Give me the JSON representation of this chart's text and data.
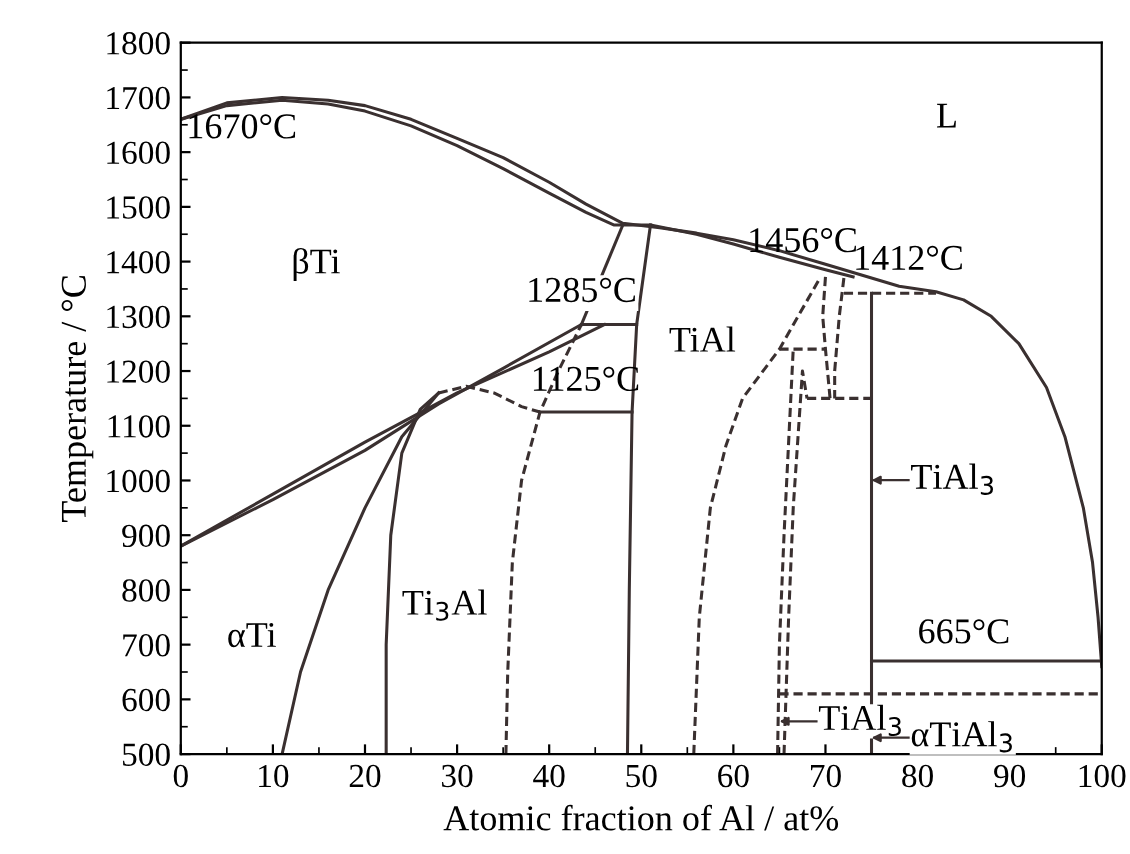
{
  "chart_data": {
    "type": "line",
    "xlabel": "Atomic fraction of Al / at%",
    "ylabel": "Temperature / °C",
    "xlim": [
      0,
      100
    ],
    "ylim": [
      500,
      1800
    ],
    "xticks": [
      0,
      10,
      20,
      30,
      40,
      50,
      60,
      70,
      80,
      90,
      100
    ],
    "yticks": [
      500,
      600,
      700,
      800,
      900,
      1000,
      1100,
      1200,
      1300,
      1400,
      1500,
      1600,
      1700,
      1800
    ],
    "grid": false,
    "legend": false,
    "marker": "none",
    "series": [
      {
        "color": "#3a3030",
        "line_style": "solid",
        "x": [
          0,
          5,
          11,
          16,
          20,
          25,
          30,
          35,
          40,
          44,
          48,
          52,
          56,
          60,
          65,
          70,
          74,
          78,
          82,
          85,
          88,
          91,
          94,
          96,
          98,
          99,
          99.6,
          100
        ],
        "values": [
          1660,
          1690,
          1700,
          1695,
          1685,
          1660,
          1625,
          1590,
          1545,
          1505,
          1470,
          1462,
          1452,
          1440,
          1420,
          1395,
          1375,
          1355,
          1345,
          1330,
          1300,
          1250,
          1170,
          1080,
          950,
          850,
          750,
          660
        ]
      },
      {
        "color": "#3a3030",
        "line_style": "solid",
        "x": [
          0,
          5,
          11,
          16,
          20,
          25,
          30,
          35,
          40,
          44,
          47,
          51,
          56,
          60,
          65,
          70,
          73
        ],
        "values": [
          1660,
          1685,
          1695,
          1688,
          1675,
          1648,
          1612,
          1570,
          1525,
          1490,
          1467,
          1467,
          1450,
          1432,
          1408,
          1385,
          1372
        ]
      },
      {
        "color": "#3a3030",
        "line_style": "solid",
        "x": [
          0,
          10,
          20,
          30,
          40,
          46
        ],
        "values": [
          880,
          975,
          1070,
          1160,
          1235,
          1285
        ]
      },
      {
        "color": "#3a3030",
        "line_style": "solid",
        "x": [
          0,
          10,
          20,
          28,
          35,
          43.5
        ],
        "values": [
          880,
          965,
          1055,
          1140,
          1205,
          1285
        ]
      },
      {
        "color": "#3a3030",
        "line_style": "solid",
        "x": [
          43.5,
          49.5
        ],
        "values": [
          1285,
          1285
        ]
      },
      {
        "color": "#3a3030",
        "line_style": "solid",
        "x": [
          43.5,
          48
        ],
        "values": [
          1285,
          1467
        ]
      },
      {
        "color": "#3a3030",
        "line_style": "solid",
        "x": [
          51,
          49.5,
          49,
          48.7,
          48.5
        ],
        "values": [
          1467,
          1285,
          1125,
          800,
          500
        ]
      },
      {
        "color": "#3a3030",
        "line_style": "solid",
        "x": [
          39,
          49
        ],
        "values": [
          1125,
          1125
        ]
      },
      {
        "color": "#3a3030",
        "line_style": "solid",
        "x": [
          11,
          13,
          16,
          20,
          24,
          28
        ],
        "values": [
          500,
          650,
          800,
          950,
          1080,
          1160
        ]
      },
      {
        "color": "#3a3030",
        "line_style": "solid",
        "x": [
          22.3,
          22.3,
          22.8,
          24,
          26,
          28
        ],
        "values": [
          500,
          700,
          900,
          1050,
          1130,
          1160
        ]
      },
      {
        "color": "#3a3030",
        "line_style": "dashed",
        "x": [
          28,
          31,
          34,
          37,
          39
        ],
        "values": [
          1160,
          1172,
          1160,
          1135,
          1125
        ]
      },
      {
        "color": "#3a3030",
        "line_style": "dashed",
        "x": [
          35.3,
          35.5,
          36,
          37,
          39,
          41,
          43.5
        ],
        "values": [
          500,
          650,
          850,
          1000,
          1125,
          1200,
          1285
        ]
      },
      {
        "color": "#3a3030",
        "line_style": "dashed",
        "x": [
          55.7,
          56.3,
          57.5,
          59.2,
          61,
          65,
          69.4
        ],
        "values": [
          500,
          750,
          950,
          1064,
          1150,
          1240,
          1370
        ]
      },
      {
        "color": "#3a3030",
        "line_style": "dashed",
        "x": [
          65,
          70
        ],
        "values": [
          1240,
          1240
        ]
      },
      {
        "color": "#3a3030",
        "line_style": "dashed",
        "x": [
          64.8,
          65,
          65.5,
          66.5
        ],
        "values": [
          500,
          700,
          900,
          1240
        ]
      },
      {
        "color": "#3a3030",
        "line_style": "dashed",
        "x": [
          65.5,
          66,
          66.5,
          67.5,
          68
        ],
        "values": [
          500,
          750,
          950,
          1200,
          1150
        ]
      },
      {
        "color": "#3a3030",
        "line_style": "dashed",
        "x": [
          68,
          75
        ],
        "values": [
          1150,
          1150
        ]
      },
      {
        "color": "#3a3030",
        "line_style": "dashed",
        "x": [
          70,
          69.7,
          70,
          70.5
        ],
        "values": [
          1372,
          1300,
          1240,
          1150
        ]
      },
      {
        "color": "#3a3030",
        "line_style": "dashed",
        "x": [
          72,
          71.5,
          71,
          71
        ],
        "values": [
          1370,
          1300,
          1200,
          1150
        ]
      },
      {
        "color": "#3a3030",
        "line_style": "dashed",
        "x": [
          72,
          82
        ],
        "values": [
          1342,
          1342
        ]
      },
      {
        "color": "#3a3030",
        "line_style": "solid",
        "x": [
          75,
          75
        ],
        "values": [
          500,
          1342
        ]
      },
      {
        "color": "#3a3030",
        "line_style": "solid",
        "x": [
          75,
          100
        ],
        "values": [
          670,
          670
        ]
      },
      {
        "color": "#3a3030",
        "line_style": "dashed",
        "x": [
          65,
          100
        ],
        "values": [
          610,
          610
        ]
      }
    ],
    "annotations": [
      "1670°C",
      "βTi",
      "1285°C",
      "1125°C",
      "TiAl",
      "1456°C",
      "1412°C",
      "L",
      "αTi",
      "Ti$_{3}$Al",
      "665°C",
      "TiAl$_{3}$",
      "TiAl$_{3}$",
      "αTiAl$_{3}$"
    ]
  }
}
